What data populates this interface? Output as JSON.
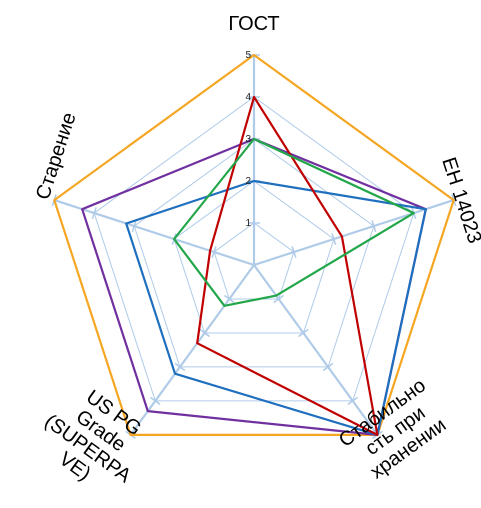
{
  "chart_data": {
    "type": "radar",
    "axes": [
      {
        "id": "gost",
        "label_lines": [
          "ГОСТ"
        ]
      },
      {
        "id": "en",
        "label_lines": [
          "ЕН 14023"
        ]
      },
      {
        "id": "stab",
        "label_lines": [
          "Стабильно",
          "сть при",
          "хранении"
        ]
      },
      {
        "id": "uspg",
        "label_lines": [
          "US PG",
          "Grade",
          "(SUPERPA",
          "VE)"
        ]
      },
      {
        "id": "aging",
        "label_lines": [
          "Старение"
        ]
      }
    ],
    "ticks": [
      "1",
      "2",
      "3",
      "4",
      "5"
    ],
    "rmax": 5,
    "grid": true,
    "series": [
      {
        "color": "#F5A623",
        "values": [
          5,
          5,
          5,
          5,
          5
        ]
      },
      {
        "color": "#7030A0",
        "values": [
          3,
          4.3,
          5,
          4.3,
          4.3
        ]
      },
      {
        "color": "#1F6FBF",
        "values": [
          2,
          4.3,
          5,
          3.2,
          3.2
        ]
      },
      {
        "color": "#C00000",
        "values": [
          4,
          2.2,
          5,
          2.3,
          1.1
        ]
      },
      {
        "color": "#22A64A",
        "values": [
          3,
          4,
          0.9,
          1.2,
          2
        ]
      }
    ]
  }
}
